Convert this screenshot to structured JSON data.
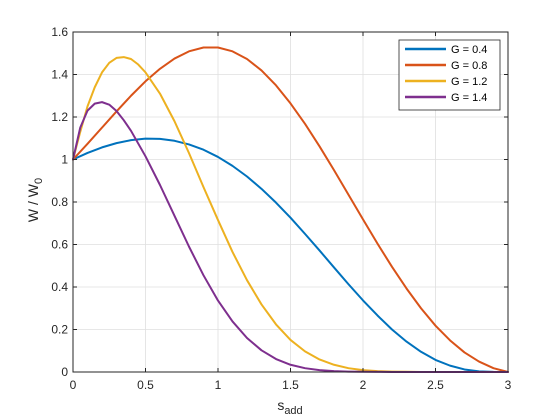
{
  "chart_data": {
    "type": "line",
    "xlabel": {
      "main": "s",
      "sub": "add"
    },
    "ylabel": {
      "main": "W / W",
      "sub": "0"
    },
    "xlim": [
      0,
      3
    ],
    "ylim": [
      0,
      1.6
    ],
    "x_ticks": [
      "0",
      "0.5",
      "1",
      "1.5",
      "2",
      "2.5",
      "3"
    ],
    "y_ticks": [
      "0",
      "0.2",
      "0.4",
      "0.6",
      "0.8",
      "1",
      "1.2",
      "1.4",
      "1.6"
    ],
    "grid": true,
    "legend_position": "top-right",
    "series": [
      {
        "name": "G = 0.4",
        "color": "#0072BD",
        "x": [
          0,
          0.1,
          0.2,
          0.3,
          0.4,
          0.5,
          0.6,
          0.7,
          0.8,
          0.9,
          1.0,
          1.1,
          1.2,
          1.3,
          1.4,
          1.5,
          1.6,
          1.7,
          1.8,
          1.9,
          2.0,
          2.1,
          2.2,
          2.3,
          2.4,
          2.5,
          2.6,
          2.7,
          2.8,
          2.9,
          3.0
        ],
        "y": [
          1.0,
          1.031,
          1.057,
          1.077,
          1.091,
          1.098,
          1.097,
          1.088,
          1.071,
          1.046,
          1.012,
          0.97,
          0.92,
          0.862,
          0.797,
          0.726,
          0.65,
          0.572,
          0.492,
          0.413,
          0.337,
          0.266,
          0.2,
          0.143,
          0.095,
          0.057,
          0.03,
          0.012,
          0.003,
          0.0005,
          0.0
        ]
      },
      {
        "name": "G = 0.8",
        "color": "#D95319",
        "x": [
          0,
          0.1,
          0.2,
          0.3,
          0.4,
          0.5,
          0.6,
          0.7,
          0.8,
          0.9,
          1.0,
          1.1,
          1.2,
          1.3,
          1.4,
          1.5,
          1.6,
          1.7,
          1.8,
          1.9,
          2.0,
          2.1,
          2.2,
          2.3,
          2.4,
          2.5,
          2.6,
          2.7,
          2.8,
          2.9,
          3.0
        ],
        "y": [
          1.0,
          1.074,
          1.15,
          1.226,
          1.3,
          1.368,
          1.427,
          1.475,
          1.509,
          1.527,
          1.527,
          1.509,
          1.473,
          1.419,
          1.349,
          1.264,
          1.168,
          1.062,
          0.95,
          0.834,
          0.718,
          0.604,
          0.495,
          0.393,
          0.3,
          0.218,
          0.149,
          0.092,
          0.049,
          0.018,
          0.0
        ]
      },
      {
        "name": "G = 1.2",
        "color": "#EDB120",
        "x": [
          0,
          0.05,
          0.1,
          0.15,
          0.2,
          0.25,
          0.3,
          0.35,
          0.4,
          0.45,
          0.5,
          0.6,
          0.7,
          0.8,
          0.9,
          1.0,
          1.1,
          1.2,
          1.3,
          1.4,
          1.5,
          1.6,
          1.7,
          1.8,
          1.9,
          2.0,
          2.1,
          2.2,
          2.3,
          2.4,
          2.5,
          2.6,
          2.8,
          3.0
        ],
        "y": [
          1.0,
          1.13,
          1.25,
          1.34,
          1.41,
          1.455,
          1.478,
          1.482,
          1.473,
          1.447,
          1.41,
          1.31,
          1.18,
          1.03,
          0.87,
          0.715,
          0.565,
          0.432,
          0.318,
          0.224,
          0.151,
          0.097,
          0.059,
          0.034,
          0.018,
          0.009,
          0.004,
          0.002,
          0.001,
          0.0,
          0.0,
          0.0,
          0.0,
          0.0
        ]
      },
      {
        "name": "G = 1.4",
        "color": "#7E2F8E",
        "x": [
          0,
          0.05,
          0.1,
          0.15,
          0.2,
          0.25,
          0.3,
          0.35,
          0.4,
          0.45,
          0.5,
          0.6,
          0.7,
          0.8,
          0.9,
          1.0,
          1.1,
          1.2,
          1.3,
          1.4,
          1.5,
          1.6,
          1.7,
          1.8,
          1.9,
          2.0,
          2.2,
          2.4,
          2.6,
          2.8,
          3.0
        ],
        "y": [
          1.0,
          1.15,
          1.23,
          1.263,
          1.27,
          1.258,
          1.228,
          1.185,
          1.135,
          1.075,
          1.015,
          0.88,
          0.735,
          0.59,
          0.455,
          0.336,
          0.238,
          0.16,
          0.102,
          0.061,
          0.034,
          0.018,
          0.009,
          0.004,
          0.002,
          0.001,
          0.0,
          0.0,
          0.0,
          0.0,
          0.0
        ]
      }
    ]
  }
}
